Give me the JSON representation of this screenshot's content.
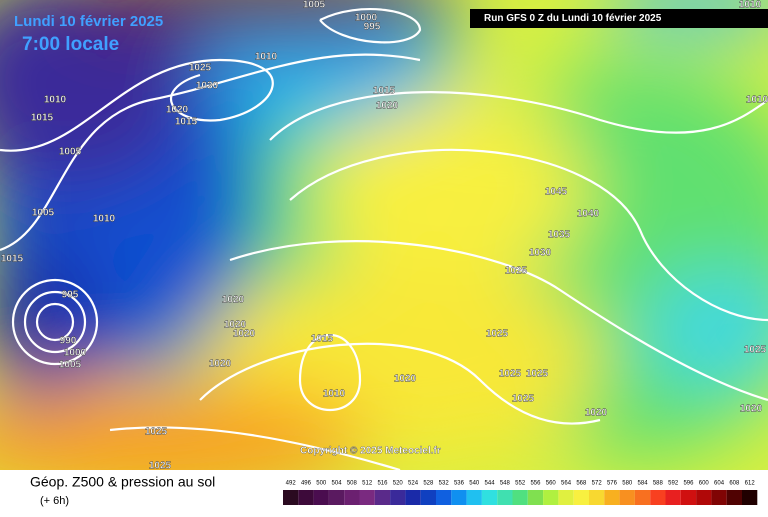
{
  "header": {
    "date": "Lundi 10 février 2025",
    "time": "7:00 locale",
    "run": "Run GFS 0 Z du Lundi 10 février 2025",
    "copyright": "Copyright © 2025 Meteociel.fr"
  },
  "footer": {
    "title": "Géop. Z500 & pression au sol",
    "step": "(+ 6h)"
  },
  "legend": {
    "levels": [
      492,
      496,
      500,
      504,
      508,
      512,
      516,
      520,
      524,
      528,
      532,
      536,
      540,
      544,
      548,
      552,
      556,
      560,
      564,
      568,
      572,
      576,
      580,
      584,
      588,
      592,
      596,
      600,
      604,
      608,
      612
    ],
    "colors": [
      "#2a0a20",
      "#3d0a3a",
      "#4a0d4f",
      "#5a1a60",
      "#6b2070",
      "#7a2a80",
      "#5a2a8a",
      "#3a2a9a",
      "#1a2aa8",
      "#1040c0",
      "#1060e0",
      "#1090f0",
      "#20c0f0",
      "#30e0e0",
      "#40e0b0",
      "#50e080",
      "#80e050",
      "#b0f040",
      "#e0f040",
      "#f8f040",
      "#f8d830",
      "#f8b020",
      "#f89020",
      "#f87020",
      "#f84020",
      "#e82020",
      "#d01010",
      "#b00808",
      "#800404",
      "#500202",
      "#200000"
    ]
  },
  "isobar_labels": [
    1005,
    1000,
    995,
    1010,
    1025,
    1030,
    1010,
    1015,
    1020,
    1015,
    1015,
    1020,
    1005,
    1005,
    1010,
    1015,
    995,
    990,
    1000,
    1005,
    1020,
    1020,
    1020,
    1015,
    1020,
    1010,
    1020,
    1045,
    1040,
    1035,
    1030,
    1025,
    1025,
    1025,
    1025,
    1025,
    1020,
    1020,
    1025,
    1010,
    1010,
    1025,
    1025
  ]
}
